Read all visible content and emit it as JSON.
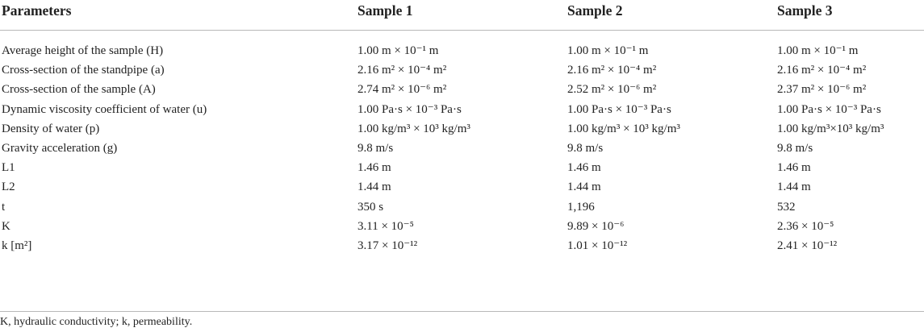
{
  "table": {
    "header": [
      "Parameters",
      "Sample 1",
      "Sample 2",
      "Sample 3"
    ],
    "rows": [
      [
        "Average height of the sample (H)",
        "1.00 m × 10⁻¹ m",
        "1.00 m × 10⁻¹ m",
        "1.00 m × 10⁻¹ m"
      ],
      [
        "Cross-section of the standpipe (a)",
        "2.16 m² × 10⁻⁴ m²",
        "2.16 m² × 10⁻⁴ m²",
        "2.16 m² × 10⁻⁴ m²"
      ],
      [
        "Cross-section of the sample (A)",
        "2.74 m² × 10⁻⁶ m²",
        "2.52 m² × 10⁻⁶ m²",
        "2.37 m² × 10⁻⁶ m²"
      ],
      [
        "Dynamic viscosity coefficient of water (u)",
        "1.00 Pa·s × 10⁻³ Pa·s",
        "1.00 Pa·s × 10⁻³ Pa·s",
        "1.00 Pa·s × 10⁻³ Pa·s"
      ],
      [
        "Density of water (p)",
        "1.00 kg/m³ × 10³ kg/m³",
        "1.00 kg/m³ × 10³ kg/m³",
        "1.00 kg/m³×10³ kg/m³"
      ],
      [
        "Gravity acceleration (g)",
        "9.8 m/s",
        "9.8 m/s",
        "9.8 m/s"
      ],
      [
        "L1",
        "1.46 m",
        "1.46 m",
        "1.46 m"
      ],
      [
        "L2",
        "1.44 m",
        "1.44 m",
        "1.44 m"
      ],
      [
        "t",
        "350 s",
        "1,196",
        "532"
      ],
      [
        "K",
        "3.11 × 10⁻⁵",
        "9.89 × 10⁻⁶",
        "2.36 × 10⁻⁵"
      ],
      [
        "k [m²]",
        "3.17 × 10⁻¹²",
        "1.01 × 10⁻¹²",
        "2.41 × 10⁻¹²"
      ]
    ],
    "footnote": "K, hydraulic conductivity; k, permeability."
  }
}
